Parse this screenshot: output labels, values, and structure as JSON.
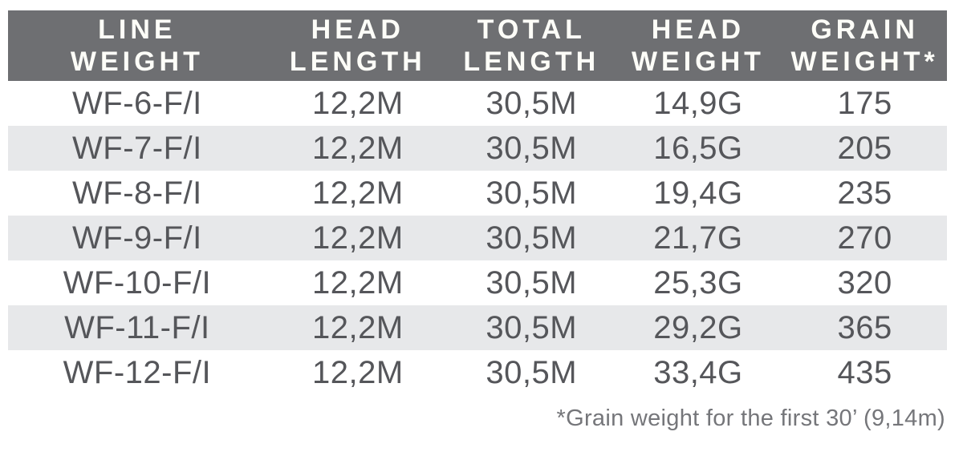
{
  "colors": {
    "header_bg": "#6e6f72",
    "header_text": "#fdfdf8",
    "row_stripe": "#e7e8ea",
    "cell_text": "#55565a",
    "footnote_text": "#75767a"
  },
  "table": {
    "columns": [
      {
        "line1": "LINE",
        "line2": "WEIGHT"
      },
      {
        "line1": "HEAD",
        "line2": "LENGTH"
      },
      {
        "line1": "TOTAL",
        "line2": "LENGTH"
      },
      {
        "line1": "HEAD",
        "line2": "WEIGHT"
      },
      {
        "line1": "GRAIN",
        "line2": "WEIGHT*"
      }
    ],
    "rows": [
      {
        "cells": [
          "WF-6-F/I",
          "12,2M",
          "30,5M",
          "14,9G",
          "175"
        ]
      },
      {
        "cells": [
          "WF-7-F/I",
          "12,2M",
          "30,5M",
          "16,5G",
          "205"
        ]
      },
      {
        "cells": [
          "WF-8-F/I",
          "12,2M",
          "30,5M",
          "19,4G",
          "235"
        ]
      },
      {
        "cells": [
          "WF-9-F/I",
          "12,2M",
          "30,5M",
          "21,7G",
          "270"
        ]
      },
      {
        "cells": [
          "WF-10-F/I",
          "12,2M",
          "30,5M",
          "25,3G",
          "320"
        ]
      },
      {
        "cells": [
          "WF-11-F/I",
          "12,2M",
          "30,5M",
          "29,2G",
          "365"
        ]
      },
      {
        "cells": [
          "WF-12-F/I",
          "12,2M",
          "30,5M",
          "33,4G",
          "435"
        ]
      }
    ],
    "footnote": "*Grain weight for the first 30’ (9,14m)"
  }
}
